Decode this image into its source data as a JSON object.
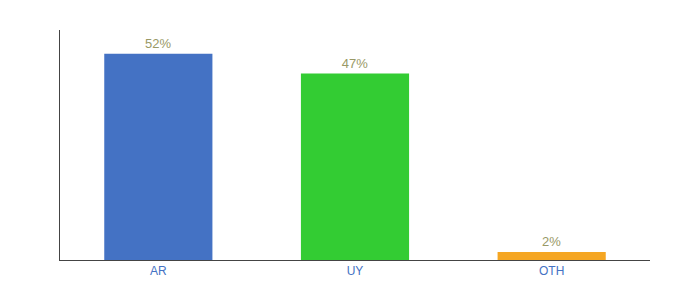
{
  "chart_data": {
    "type": "bar",
    "categories": [
      "AR",
      "UY",
      "OTH"
    ],
    "values": [
      52,
      47,
      2
    ],
    "value_labels": [
      "52%",
      "47%",
      "2%"
    ],
    "colors": [
      "#4472c4",
      "#33cc33",
      "#f5a623"
    ],
    "ylim": [
      0,
      58
    ],
    "grid": false,
    "data_labels": true,
    "tick_labels": "x"
  }
}
